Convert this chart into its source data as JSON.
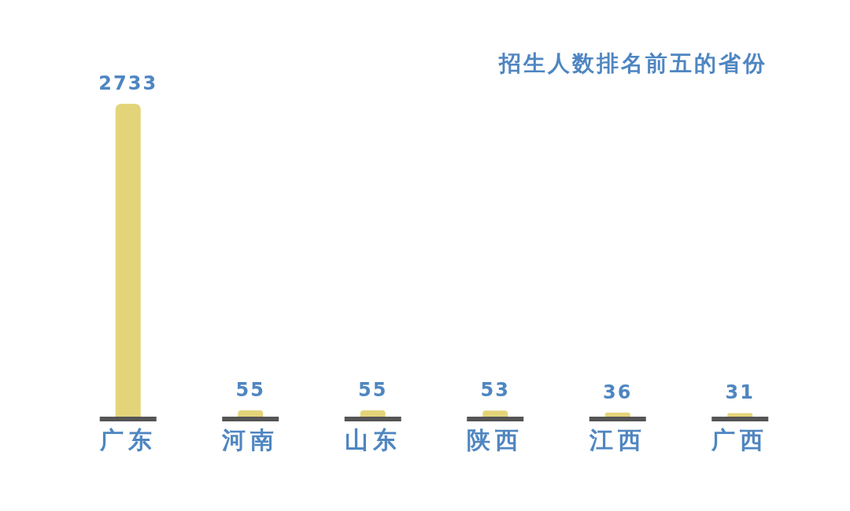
{
  "chart_data": {
    "type": "bar",
    "title": "招生人数排名前五的省份",
    "categories": [
      "广东",
      "河南",
      "山东",
      "陕西",
      "江西",
      "广西"
    ],
    "values": [
      2733,
      55,
      55,
      53,
      36,
      31
    ],
    "color": "#e3d47a",
    "data_labels": true
  }
}
